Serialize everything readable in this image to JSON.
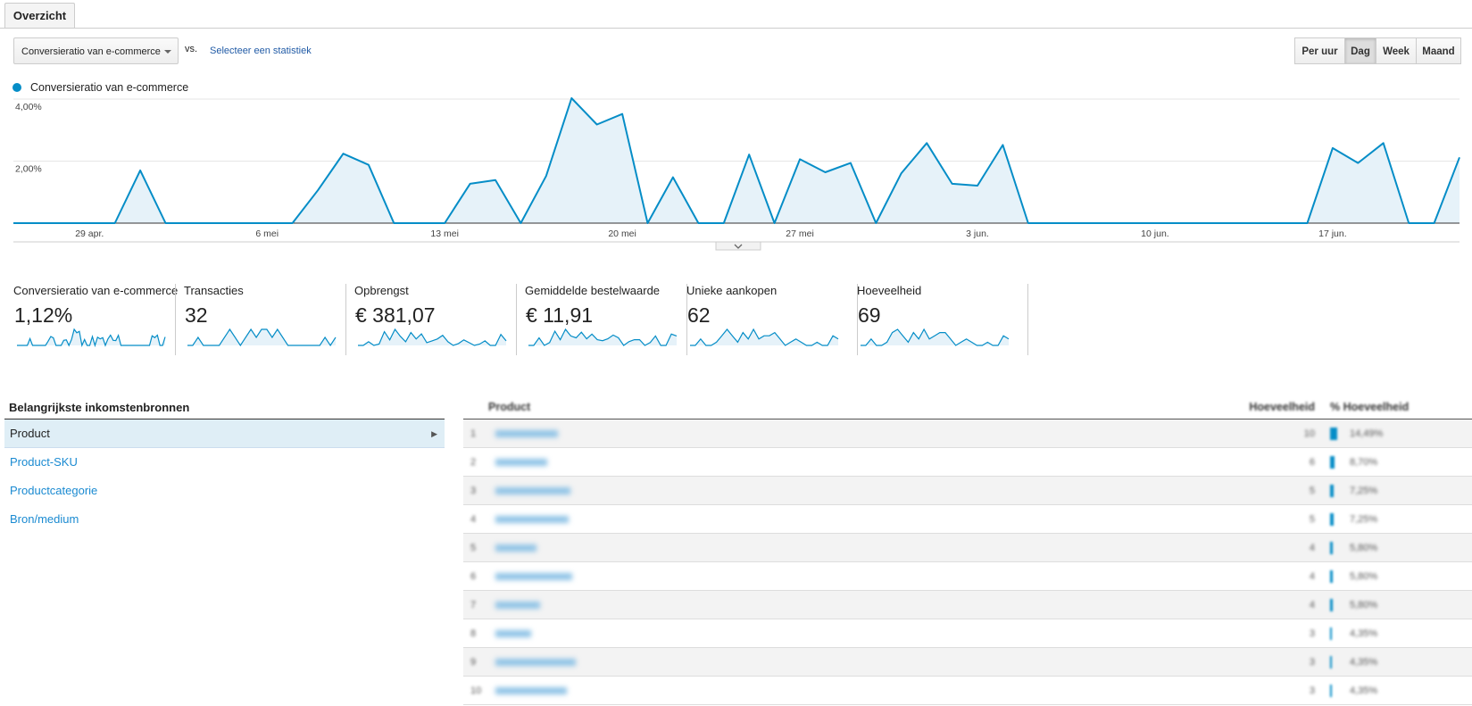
{
  "tabs": [
    "Overzicht"
  ],
  "controls": {
    "metric": "Conversieratio van e-commerce",
    "vs": "vs.",
    "compare_link": "Selecteer een statistiek",
    "granularity": [
      "Per uur",
      "Dag",
      "Week",
      "Maand"
    ],
    "selected_index": 1
  },
  "chart": {
    "type": "area",
    "series_name": "Conversieratio van e-commerce",
    "color": "#058dc7",
    "fill": "#e6f2f9",
    "categories": [
      null,
      null,
      null,
      "29 apr.",
      null,
      null,
      null,
      null,
      null,
      null,
      "6 mei",
      null,
      null,
      null,
      null,
      null,
      null,
      "13 mei",
      null,
      null,
      null,
      null,
      null,
      null,
      "20 mei",
      null,
      null,
      null,
      null,
      null,
      null,
      "27 mei",
      null,
      null,
      null,
      null,
      null,
      null,
      "3 jun.",
      null,
      null,
      null,
      null,
      null,
      null,
      "10 jun.",
      null,
      null,
      null,
      null,
      null,
      null,
      "17 jun.",
      null,
      null,
      null,
      null,
      null
    ],
    "values": [
      0,
      0,
      0,
      0,
      0,
      1.7,
      0,
      0,
      0,
      0,
      0,
      0,
      1.06,
      2.24,
      1.88,
      0,
      0,
      0,
      1.27,
      1.39,
      0,
      1.52,
      4.03,
      3.18,
      3.52,
      0,
      1.48,
      0,
      0,
      2.21,
      0,
      2.06,
      1.64,
      1.94,
      0,
      1.61,
      2.58,
      1.27,
      1.21,
      2.52,
      0,
      0,
      0,
      0,
      0,
      0,
      0,
      0,
      0,
      0,
      0,
      0,
      2.42,
      1.94,
      2.58,
      0,
      0,
      2.12
    ],
    "ylim": [
      0,
      4
    ],
    "yticks": [
      {
        "value": 2,
        "label": "2,00%"
      },
      {
        "value": 4,
        "label": "4,00%"
      }
    ],
    "grid": true
  },
  "scorecards": [
    {
      "label": "Conversieratio van e-commerce",
      "value": "1,12%"
    },
    {
      "label": "Transacties",
      "value": "32",
      "sparkline": [
        0,
        0,
        1,
        0,
        0,
        0,
        0,
        1,
        2,
        1,
        0,
        1,
        2,
        1,
        2,
        2,
        1,
        2,
        1,
        0,
        0,
        0,
        0,
        0,
        0,
        0,
        1,
        0,
        1
      ]
    },
    {
      "label": "Opbrengst",
      "value": "€ 381,07",
      "sparkline": [
        0,
        0,
        8,
        0,
        3,
        30,
        12,
        35,
        20,
        8,
        28,
        14,
        25,
        6,
        10,
        14,
        22,
        8,
        0,
        4,
        12,
        6,
        0,
        3,
        10,
        0,
        0,
        24,
        10
      ]
    },
    {
      "label": "Gemiddelde bestelwaarde",
      "value": "€ 11,91",
      "sparkline": [
        0,
        0,
        8,
        0,
        3,
        15,
        6,
        17,
        10,
        8,
        14,
        7,
        12,
        6,
        5,
        7,
        11,
        8,
        0,
        4,
        6,
        6,
        0,
        3,
        10,
        0,
        0,
        12,
        10
      ]
    },
    {
      "label": "Unieke aankopen",
      "value": "62",
      "sparkline": [
        0,
        0,
        2,
        0,
        0,
        1,
        3,
        5,
        3,
        1,
        4,
        2,
        5,
        2,
        3,
        3,
        4,
        2,
        0,
        1,
        2,
        1,
        0,
        0,
        1,
        0,
        0,
        3,
        2
      ]
    },
    {
      "label": "Hoeveelheid",
      "value": "69",
      "sparkline": [
        0,
        0,
        2,
        0,
        0,
        1,
        4,
        5,
        3,
        1,
        4,
        2,
        5,
        2,
        3,
        4,
        4,
        2,
        0,
        1,
        2,
        1,
        0,
        0,
        1,
        0,
        0,
        3,
        2
      ]
    }
  ],
  "sources": {
    "title": "Belangrijkste inkomstenbronnen",
    "items": [
      "Product",
      "Product-SKU",
      "Productcategorie",
      "Bron/medium"
    ],
    "selected_index": 0
  },
  "table": {
    "columns": [
      "Product",
      "Hoeveelheid",
      "% Hoeveelheid"
    ],
    "rows": [
      {
        "rank": 1,
        "quantity": 10,
        "share": 14.49,
        "share_label": "14,49%"
      },
      {
        "rank": 2,
        "quantity": 6,
        "share": 8.7,
        "share_label": "8,70%"
      },
      {
        "rank": 3,
        "quantity": 5,
        "share": 7.25,
        "share_label": "7,25%"
      },
      {
        "rank": 4,
        "quantity": 5,
        "share": 7.25,
        "share_label": "7,25%"
      },
      {
        "rank": 5,
        "quantity": 4,
        "share": 5.8,
        "share_label": "5,80%"
      },
      {
        "rank": 6,
        "quantity": 4,
        "share": 5.8,
        "share_label": "5,80%"
      },
      {
        "rank": 7,
        "quantity": 4,
        "share": 5.8,
        "share_label": "5,80%"
      },
      {
        "rank": 8,
        "quantity": 3,
        "share": 4.35,
        "share_label": "4,35%"
      },
      {
        "rank": 9,
        "quantity": 3,
        "share": 4.35,
        "share_label": "4,35%"
      },
      {
        "rank": 10,
        "quantity": 3,
        "share": 4.35,
        "share_label": "4,35%"
      }
    ]
  }
}
